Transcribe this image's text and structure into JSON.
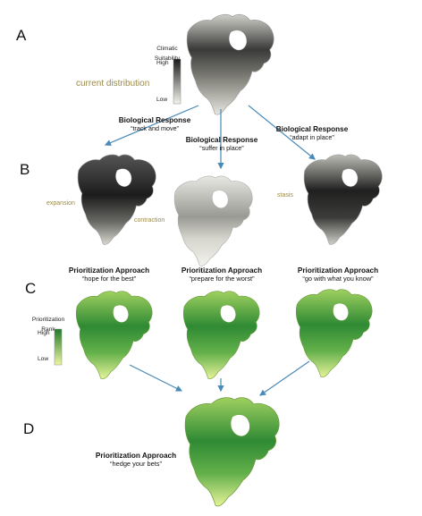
{
  "panels": {
    "A": {
      "letter": "A",
      "label": "current distribution",
      "legend": {
        "title": "Climatic Suitability",
        "high": "High",
        "low": "Low"
      }
    },
    "responses": [
      {
        "title": "Biological Response",
        "subtitle": "“track and move”"
      },
      {
        "title": "Biological Response",
        "subtitle": "“suffer in place”"
      },
      {
        "title": "Biological Response",
        "subtitle": "“adapt in place”"
      }
    ],
    "B": {
      "letter": "B",
      "scenarios": [
        "expansion",
        "contraction",
        "stasis"
      ]
    },
    "C": {
      "letter": "C",
      "legend": {
        "title": "Prioritization Rank",
        "high": "High",
        "low": "Low"
      },
      "approaches": [
        {
          "title": "Prioritization Approach",
          "subtitle": "“hope for the best”"
        },
        {
          "title": "Prioritization Approach",
          "subtitle": "“prepare for the worst”"
        },
        {
          "title": "Prioritization Approach",
          "subtitle": "“go with what you know”"
        }
      ]
    },
    "D": {
      "letter": "D",
      "approach": {
        "title": "Prioritization Approach",
        "subtitle": "“hedge your bets”"
      }
    }
  },
  "colors": {
    "arrow": "#4a8ab8",
    "scenario_text": "#9a8a4a",
    "suit_high": "#1a1a1a",
    "suit_low": "#f4f4ee",
    "rank_high": "#1f7a2a",
    "rank_low": "#eef6a0"
  }
}
